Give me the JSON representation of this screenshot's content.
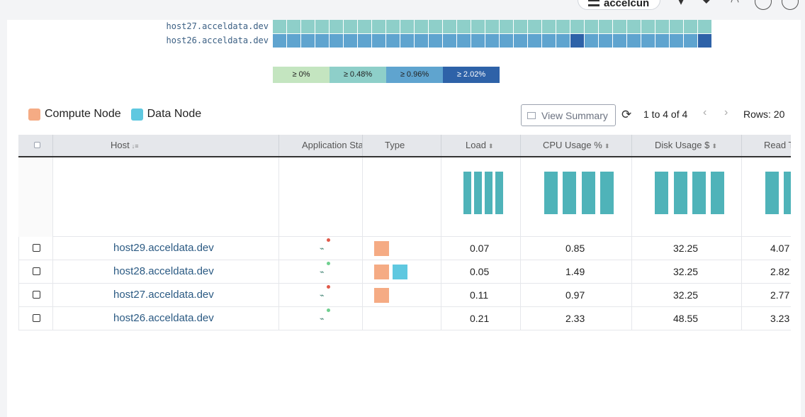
{
  "brand": {
    "name": "accelcun"
  },
  "heatmap": {
    "rows": [
      {
        "label": "host27.acceldata.dev",
        "cells": [
          "#8ecfc9",
          "#8ecfc9",
          "#8ecfc9",
          "#8ecfc9",
          "#8ecfc9",
          "#8ecfc9",
          "#8ecfc9",
          "#8ecfc9",
          "#8ecfc9",
          "#8ecfc9",
          "#8ecfc9",
          "#8ecfc9",
          "#8ecfc9",
          "#8ecfc9",
          "#8ecfc9",
          "#8ecfc9",
          "#8ecfc9",
          "#8ecfc9",
          "#8ecfc9",
          "#8ecfc9",
          "#8ecfc9",
          "#8ecfc9",
          "#8ecfc9",
          "#8ecfc9",
          "#8ecfc9",
          "#8ecfc9",
          "#8ecfc9",
          "#8ecfc9",
          "#8ecfc9",
          "#8ecfc9",
          "#8ecfc9"
        ]
      },
      {
        "label": "host26.acceldata.dev",
        "cells": [
          "#5fa4cf",
          "#5fa4cf",
          "#5fa4cf",
          "#5fa4cf",
          "#5fa4cf",
          "#5fa4cf",
          "#5fa4cf",
          "#5fa4cf",
          "#5fa4cf",
          "#5fa4cf",
          "#5fa4cf",
          "#5fa4cf",
          "#5fa4cf",
          "#5fa4cf",
          "#5fa4cf",
          "#5fa4cf",
          "#5fa4cf",
          "#5fa4cf",
          "#5fa4cf",
          "#5fa4cf",
          "#5fa4cf",
          "#2e62a8",
          "#5fa4cf",
          "#5fa4cf",
          "#5fa4cf",
          "#5fa4cf",
          "#5fa4cf",
          "#5fa4cf",
          "#5fa4cf",
          "#5fa4cf",
          "#2e62a8"
        ]
      }
    ],
    "scale": [
      {
        "label": "≥ 0%",
        "color": "#c4e5c0"
      },
      {
        "label": "≥ 0.48%",
        "color": "#8ecfc9"
      },
      {
        "label": "≥ 0.96%",
        "color": "#5fa4cf"
      },
      {
        "label": "≥ 2.02%",
        "color": "#2e62a8"
      }
    ]
  },
  "node_legend": [
    {
      "label": "Compute Node",
      "color": "#f5ab84"
    },
    {
      "label": "Data Node",
      "color": "#5fc8e0"
    }
  ],
  "toolbar": {
    "view_summary": "View Summary",
    "pager": "1 to 4 of 4",
    "rows": "Rows: 20"
  },
  "table": {
    "columns": {
      "host": "Host",
      "app_status": "Application Status",
      "type": "Type",
      "load": "Load",
      "cpu": "CPU Usage %",
      "disk": "Disk Usage $",
      "read": "Read T"
    },
    "rows": [
      {
        "host": "host29.acceldata.dev",
        "status_color": "#e05a4a",
        "types": [
          "compute"
        ],
        "load": "0.07",
        "cpu": "0.85",
        "disk": "32.25",
        "read": "4.07"
      },
      {
        "host": "host28.acceldata.dev",
        "status_color": "#6fcf8f",
        "types": [
          "compute",
          "data"
        ],
        "load": "0.05",
        "cpu": "1.49",
        "disk": "32.25",
        "read": "2.82"
      },
      {
        "host": "host27.acceldata.dev",
        "status_color": "#e05a4a",
        "types": [
          "compute"
        ],
        "load": "0.11",
        "cpu": "0.97",
        "disk": "32.25",
        "read": "2.77"
      },
      {
        "host": "host26.acceldata.dev",
        "status_color": "#6fcf8f",
        "types": [],
        "load": "0.21",
        "cpu": "2.33",
        "disk": "48.55",
        "read": "3.23"
      }
    ]
  },
  "colors": {
    "bar": "#4fb3b9",
    "compute": "#f5ab84",
    "data": "#5fc8e0"
  }
}
